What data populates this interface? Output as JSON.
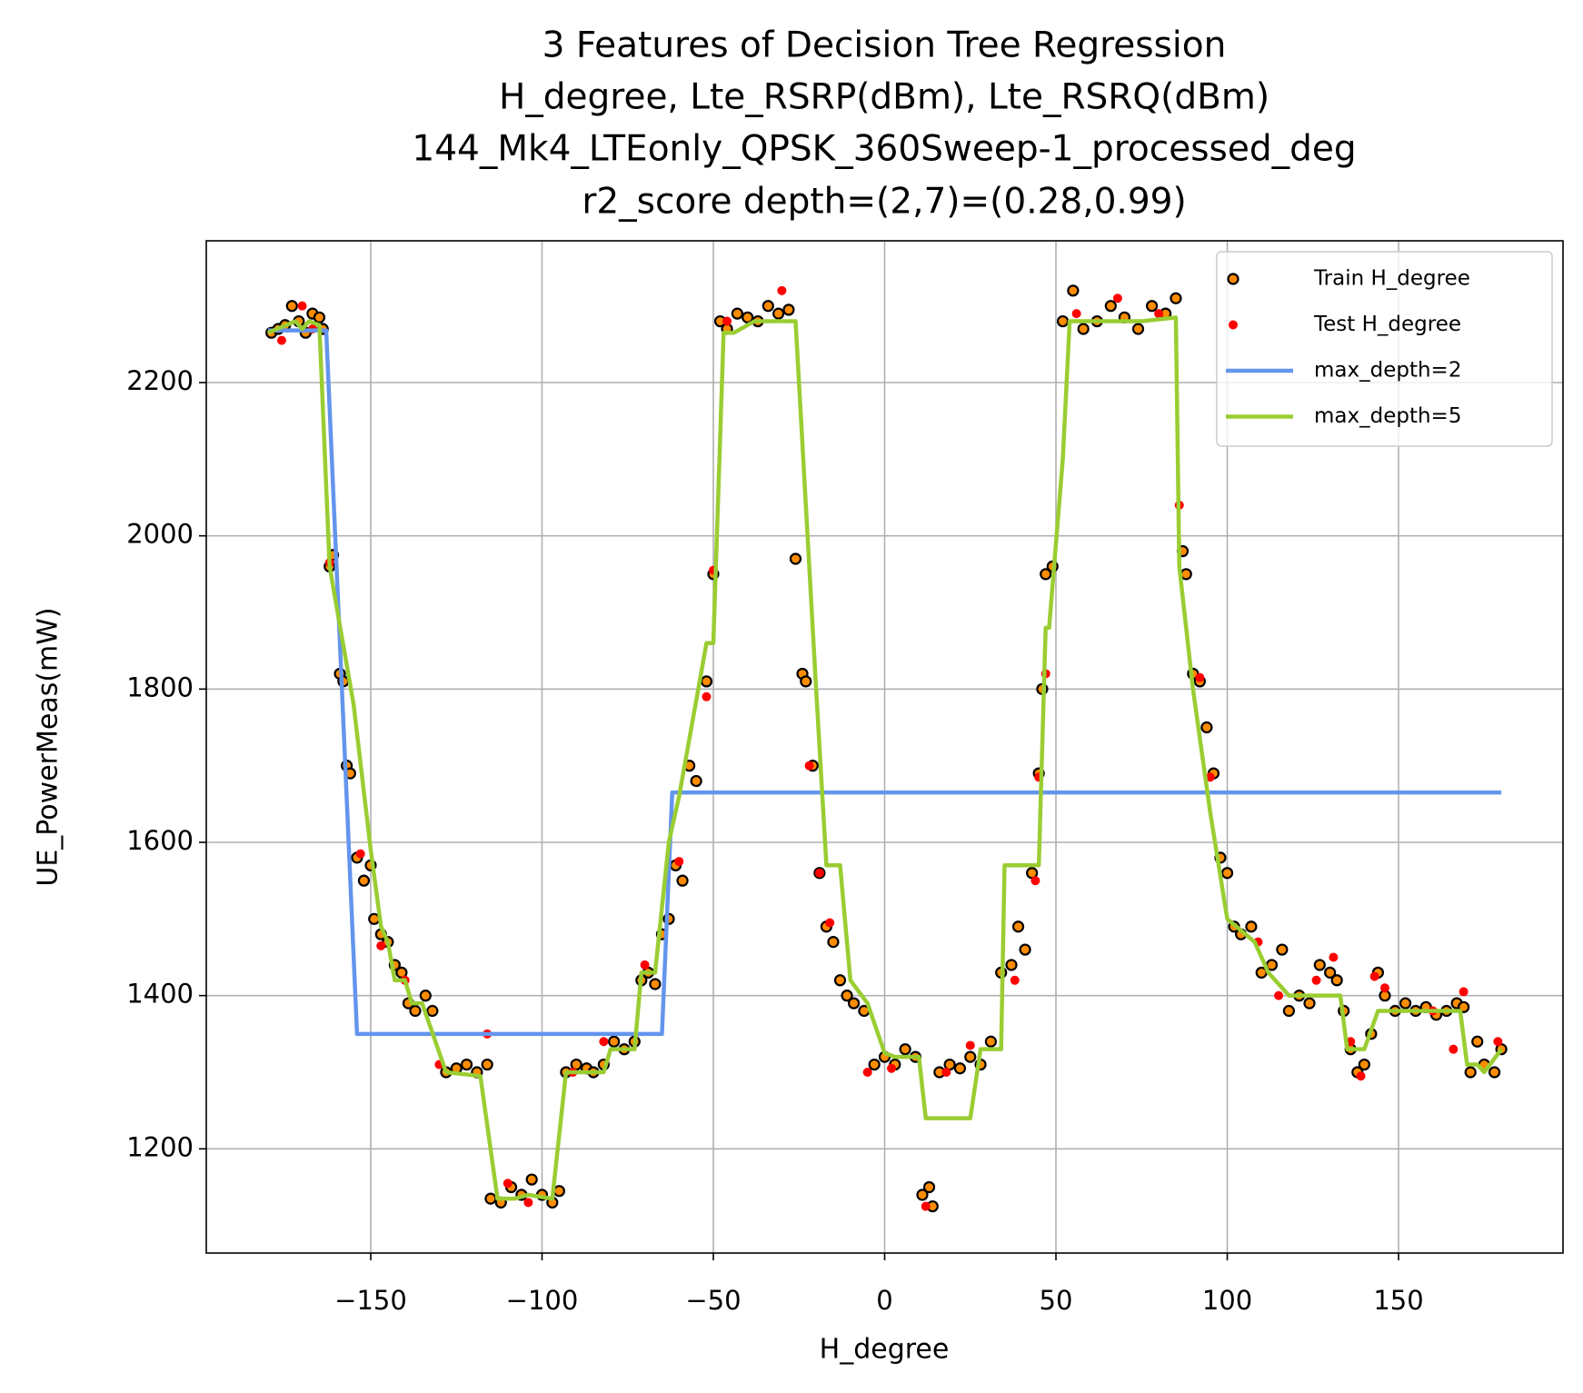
{
  "chart_data": {
    "type": "scatter",
    "title": [
      "3 Features of Decision Tree Regression",
      "H_degree, Lte_RSRP(dBm), Lte_RSRQ(dBm)",
      "144_Mk4_LTEonly_QPSK_360Sweep-1_processed_deg",
      "r2_score depth=(2,7)=(0.28,0.99)"
    ],
    "x_label": "H_degree",
    "y_label": "UE_PowerMeas(mW)",
    "xlim": [
      -198,
      198
    ],
    "ylim": [
      1064,
      2385
    ],
    "xticks": [
      {
        "value": -150,
        "label": "−150"
      },
      {
        "value": -100,
        "label": "−100"
      },
      {
        "value": -50,
        "label": "−50"
      },
      0,
      50,
      100,
      150
    ],
    "yticks": [
      1200,
      1400,
      1600,
      1800,
      2000,
      2200
    ],
    "grid": true,
    "legend": "upper right",
    "series": [
      {
        "name": "Train H_degree",
        "type": "scatter",
        "color": "#ff8c00",
        "edgecolor": "#000000",
        "x": [
          -179,
          -177,
          -175,
          -173,
          -171,
          -169,
          -167,
          -165,
          -164,
          -162,
          -161,
          -159,
          -158,
          -157,
          -156,
          -154,
          -152,
          -150,
          -149,
          -147,
          -145,
          -143,
          -141,
          -139,
          -137,
          -134,
          -132,
          -128,
          -125,
          -122,
          -119,
          -116,
          -115,
          -112,
          -109,
          -106,
          -103,
          -100,
          -97,
          -95,
          -93,
          -90,
          -87,
          -85,
          -82,
          -79,
          -76,
          -73,
          -71,
          -69,
          -67,
          -65,
          -63,
          -61,
          -59,
          -57,
          -55,
          -52,
          -50,
          -48,
          -46,
          -43,
          -40,
          -37,
          -34,
          -31,
          -28,
          -26,
          -24,
          -23,
          -21,
          -19,
          -17,
          -15,
          -13,
          -11,
          -9,
          -6,
          -3,
          0,
          3,
          6,
          9,
          11,
          13,
          14,
          16,
          19,
          22,
          25,
          28,
          31,
          34,
          37,
          39,
          41,
          43,
          45,
          46,
          47,
          49,
          52,
          55,
          58,
          62,
          66,
          70,
          74,
          78,
          82,
          85,
          87,
          88,
          90,
          92,
          94,
          96,
          98,
          100,
          102,
          104,
          107,
          110,
          113,
          116,
          118,
          121,
          124,
          127,
          130,
          132,
          134,
          136,
          138,
          140,
          142,
          144,
          146,
          149,
          152,
          155,
          158,
          161,
          164,
          167,
          169,
          171,
          173,
          175,
          178,
          180
        ],
        "values": [
          2265,
          2270,
          2275,
          2300,
          2280,
          2265,
          2290,
          2285,
          2270,
          1960,
          1975,
          1820,
          1810,
          1700,
          1690,
          1580,
          1550,
          1570,
          1500,
          1480,
          1470,
          1440,
          1430,
          1390,
          1380,
          1400,
          1380,
          1300,
          1305,
          1310,
          1300,
          1310,
          1135,
          1130,
          1150,
          1140,
          1160,
          1140,
          1130,
          1145,
          1300,
          1310,
          1305,
          1300,
          1310,
          1340,
          1330,
          1340,
          1420,
          1430,
          1415,
          1480,
          1500,
          1570,
          1550,
          1700,
          1680,
          1810,
          1950,
          2280,
          2270,
          2290,
          2285,
          2280,
          2300,
          2290,
          2295,
          1970,
          1820,
          1810,
          1700,
          1560,
          1490,
          1470,
          1420,
          1400,
          1390,
          1380,
          1310,
          1320,
          1310,
          1330,
          1320,
          1140,
          1150,
          1125,
          1300,
          1310,
          1305,
          1320,
          1310,
          1340,
          1430,
          1440,
          1490,
          1460,
          1560,
          1690,
          1800,
          1950,
          1960,
          2280,
          2320,
          2270,
          2280,
          2300,
          2285,
          2270,
          2300,
          2290,
          2310,
          1980,
          1950,
          1820,
          1810,
          1750,
          1690,
          1580,
          1560,
          1490,
          1480,
          1490,
          1430,
          1440,
          1460,
          1380,
          1400,
          1390,
          1440,
          1430,
          1420,
          1380,
          1330,
          1300,
          1310,
          1350,
          1430,
          1400,
          1380,
          1390,
          1380,
          1385,
          1375,
          1380,
          1390,
          1385,
          1300,
          1340,
          1310,
          1300,
          1330
        ]
      },
      {
        "name": "Test H_degree",
        "type": "scatter",
        "color": "#ff0000",
        "edgecolor": "#ff0000",
        "x": [
          -176,
          -170,
          -167,
          -162,
          -153,
          -147,
          -140,
          -130,
          -116,
          -110,
          -104,
          -91,
          -82,
          -70,
          -60,
          -52,
          -50,
          -46,
          -30,
          -22,
          -19,
          -16,
          -5,
          2,
          12,
          18,
          25,
          38,
          44,
          45,
          47,
          56,
          68,
          80,
          86,
          92,
          95,
          109,
          115,
          126,
          131,
          136,
          139,
          143,
          146,
          160,
          166,
          169,
          179
        ],
        "values": [
          2255,
          2300,
          2270,
          1965,
          1585,
          1465,
          1420,
          1310,
          1350,
          1155,
          1130,
          1300,
          1340,
          1440,
          1575,
          1790,
          1955,
          2280,
          2320,
          1700,
          1560,
          1495,
          1300,
          1305,
          1125,
          1300,
          1335,
          1420,
          1550,
          1685,
          1820,
          2290,
          2310,
          2290,
          2040,
          1815,
          1685,
          1470,
          1400,
          1420,
          1450,
          1340,
          1295,
          1425,
          1410,
          1380,
          1330,
          1405,
          1340
        ]
      },
      {
        "name": "max_depth=2",
        "type": "line",
        "color": "#6495ed",
        "x": [
          -180,
          -163,
          -154,
          -65,
          -62,
          180
        ],
        "values": [
          2268,
          2268,
          1350,
          1350,
          1665,
          1665
        ]
      },
      {
        "name": "max_depth=5",
        "type": "line",
        "color": "#9acd32",
        "x": [
          -180,
          -172,
          -170,
          -168,
          -165,
          -162,
          -155,
          -150,
          -147,
          -145,
          -143,
          -140,
          -138,
          -135,
          -128,
          -118,
          -113,
          -108,
          -104,
          -97,
          -93,
          -82,
          -80,
          -73,
          -71,
          -67,
          -63,
          -60,
          -52,
          -50,
          -47,
          -44,
          -38,
          -28,
          -26,
          -20,
          -17,
          -13,
          -10,
          -5,
          0,
          3,
          10,
          12,
          15,
          25,
          28,
          34,
          35,
          45,
          47,
          48,
          52,
          54,
          60,
          75,
          85,
          86,
          90,
          95,
          100,
          108,
          112,
          118,
          128,
          133,
          135,
          140,
          144,
          150,
          165,
          168,
          170,
          173,
          175,
          180
        ],
        "values": [
          2265,
          2280,
          2270,
          2280,
          2275,
          1960,
          1780,
          1590,
          1490,
          1470,
          1420,
          1420,
          1390,
          1390,
          1300,
          1295,
          1135,
          1135,
          1140,
          1135,
          1300,
          1300,
          1330,
          1330,
          1430,
          1430,
          1600,
          1660,
          1860,
          1860,
          2265,
          2265,
          2280,
          2280,
          2280,
          1800,
          1570,
          1570,
          1420,
          1390,
          1325,
          1320,
          1320,
          1240,
          1240,
          1240,
          1330,
          1330,
          1570,
          1570,
          1880,
          1880,
          2100,
          2280,
          2280,
          2280,
          2285,
          1960,
          1800,
          1640,
          1500,
          1470,
          1430,
          1400,
          1400,
          1400,
          1330,
          1330,
          1380,
          1380,
          1380,
          1380,
          1310,
          1310,
          1300,
          1330
        ]
      }
    ]
  }
}
